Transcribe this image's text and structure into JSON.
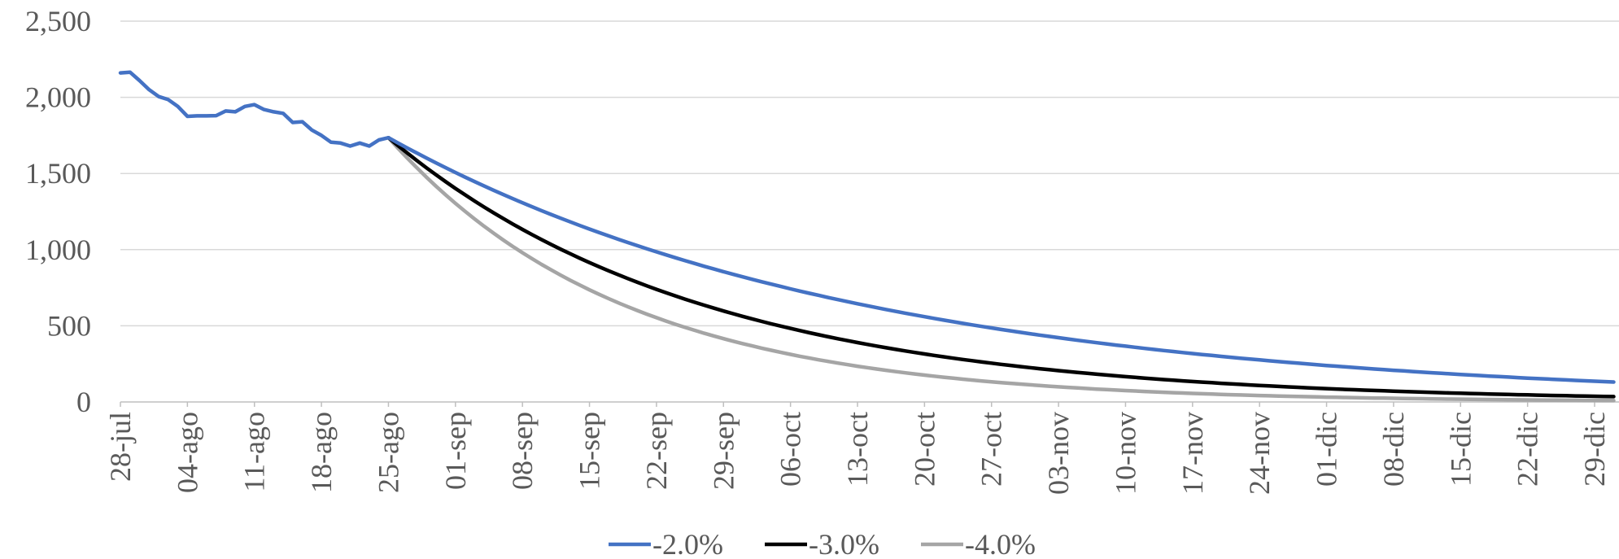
{
  "chart_data": {
    "type": "line",
    "title": "",
    "xlabel": "",
    "ylabel": "",
    "ylim": [
      0,
      2500
    ],
    "yticks": [
      "0",
      "500",
      "1,000",
      "1,500",
      "2,000",
      "2,500"
    ],
    "ytick_values": [
      0,
      500,
      1000,
      1500,
      2000,
      2500
    ],
    "xtick_labels": [
      "28-jul",
      "04-ago",
      "11-ago",
      "18-ago",
      "25-ago",
      "01-sep",
      "08-sep",
      "15-sep",
      "22-sep",
      "29-sep",
      "06-oct",
      "13-oct",
      "20-oct",
      "27-oct",
      "03-nov",
      "10-nov",
      "17-nov",
      "24-nov",
      "01-dic",
      "08-dic",
      "15-dic",
      "22-dic",
      "29-dic"
    ],
    "x_start": "28-jul",
    "x_end": "31-dic",
    "grid": "horizontal",
    "legend_position": "bottom",
    "observed": {
      "x": [
        "28-jul",
        "29-jul",
        "30-jul",
        "31-jul",
        "01-ago",
        "02-ago",
        "03-ago",
        "04-ago",
        "05-ago",
        "06-ago",
        "07-ago",
        "08-ago",
        "09-ago",
        "10-ago",
        "11-ago",
        "12-ago",
        "13-ago",
        "14-ago",
        "15-ago",
        "16-ago",
        "17-ago",
        "18-ago",
        "19-ago",
        "20-ago",
        "21-ago",
        "22-ago",
        "23-ago",
        "24-ago",
        "25-ago"
      ],
      "values": [
        2160,
        2165,
        2110,
        2050,
        2005,
        1985,
        1940,
        1875,
        1878,
        1878,
        1880,
        1910,
        1905,
        1940,
        1952,
        1920,
        1905,
        1895,
        1835,
        1840,
        1785,
        1750,
        1705,
        1700,
        1680,
        1700,
        1680,
        1720,
        1735
      ]
    },
    "projection_start": "25-ago",
    "projection_start_value": 1735,
    "series": [
      {
        "name": "-2.0%",
        "daily_rate": -0.02,
        "color": "#4472C4"
      },
      {
        "name": "-3.0%",
        "daily_rate": -0.03,
        "color": "#000000"
      },
      {
        "name": "-4.0%",
        "daily_rate": -0.04,
        "color": "#A5A5A5"
      }
    ]
  }
}
